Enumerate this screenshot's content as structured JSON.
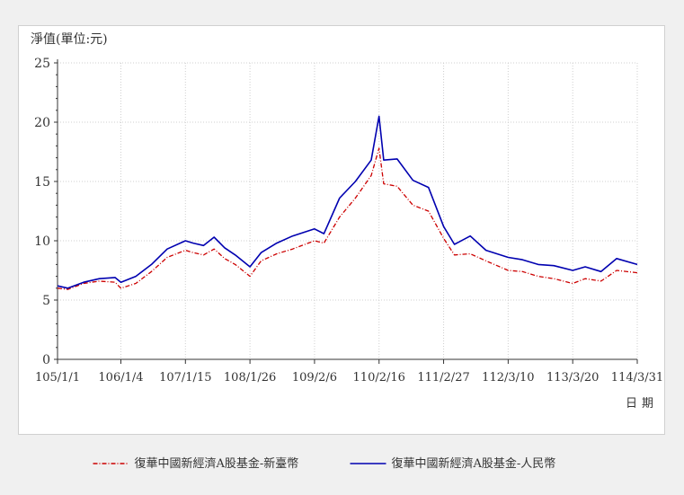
{
  "chart_data": {
    "type": "line",
    "ylabel": "淨值(單位:元)",
    "xlabel": "日期",
    "ylim": [
      0,
      25
    ],
    "yticks": [
      0,
      5,
      10,
      15,
      20,
      25
    ],
    "xticks": [
      "105/1/1",
      "106/1/4",
      "107/1/15",
      "108/1/26",
      "109/2/6",
      "110/2/16",
      "111/2/27",
      "112/3/10",
      "113/3/20",
      "114/3/31"
    ],
    "grid": true,
    "legend_position": "bottom-center",
    "series": [
      {
        "name": "復華中國新經濟A股基金-新臺幣",
        "color": "#cc0000",
        "style": "dash-dot",
        "x": [
          "105/1/1",
          "105/3/1",
          "105/6/1",
          "105/9/1",
          "105/12/1",
          "106/1/4",
          "106/4/1",
          "106/7/1",
          "106/10/1",
          "107/1/15",
          "107/3/1",
          "107/5/1",
          "107/7/1",
          "107/9/1",
          "107/11/1",
          "108/1/26",
          "108/4/1",
          "108/7/1",
          "108/10/1",
          "109/2/6",
          "109/4/1",
          "109/7/1",
          "109/10/1",
          "110/1/1",
          "110/2/16",
          "110/3/15",
          "110/6/1",
          "110/9/1",
          "110/12/1",
          "111/2/27",
          "111/5/1",
          "111/8/1",
          "111/11/1",
          "112/3/10",
          "112/6/1",
          "112/9/1",
          "112/12/1",
          "113/3/20",
          "113/6/1",
          "113/9/1",
          "113/12/1",
          "114/3/31"
        ],
        "values": [
          6.0,
          5.9,
          6.4,
          6.6,
          6.5,
          6.0,
          6.4,
          7.4,
          8.6,
          9.2,
          9.0,
          8.8,
          9.3,
          8.5,
          8.0,
          7.0,
          8.3,
          8.9,
          9.3,
          10.0,
          9.8,
          12.0,
          13.6,
          15.5,
          17.8,
          14.8,
          14.6,
          13.0,
          12.5,
          10.2,
          8.8,
          8.9,
          8.3,
          7.5,
          7.4,
          7.0,
          6.8,
          6.4,
          6.8,
          6.6,
          7.5,
          7.3
        ]
      },
      {
        "name": "復華中國新經濟A股基金-人民幣",
        "color": "#0000b0",
        "style": "solid",
        "x": [
          "105/1/1",
          "105/3/1",
          "105/6/1",
          "105/9/1",
          "105/12/1",
          "106/1/4",
          "106/4/1",
          "106/7/1",
          "106/10/1",
          "107/1/15",
          "107/3/1",
          "107/5/1",
          "107/7/1",
          "107/9/1",
          "107/11/1",
          "108/1/26",
          "108/4/1",
          "108/7/1",
          "108/10/1",
          "109/2/6",
          "109/4/1",
          "109/7/1",
          "109/10/1",
          "110/1/1",
          "110/2/16",
          "110/3/15",
          "110/6/1",
          "110/9/1",
          "110/12/1",
          "111/2/27",
          "111/5/1",
          "111/8/1",
          "111/11/1",
          "112/3/10",
          "112/6/1",
          "112/9/1",
          "112/12/1",
          "113/3/20",
          "113/6/1",
          "113/9/1",
          "113/12/1",
          "114/3/31"
        ],
        "values": [
          6.2,
          6.0,
          6.5,
          6.8,
          6.9,
          6.5,
          7.0,
          8.0,
          9.3,
          10.0,
          9.8,
          9.6,
          10.3,
          9.4,
          8.8,
          7.8,
          9.0,
          9.8,
          10.4,
          11.0,
          10.6,
          13.6,
          15.0,
          16.8,
          20.5,
          16.8,
          16.9,
          15.1,
          14.5,
          11.2,
          9.7,
          10.4,
          9.2,
          8.6,
          8.4,
          8.0,
          7.9,
          7.5,
          7.8,
          7.4,
          8.5,
          8.0
        ]
      }
    ]
  }
}
